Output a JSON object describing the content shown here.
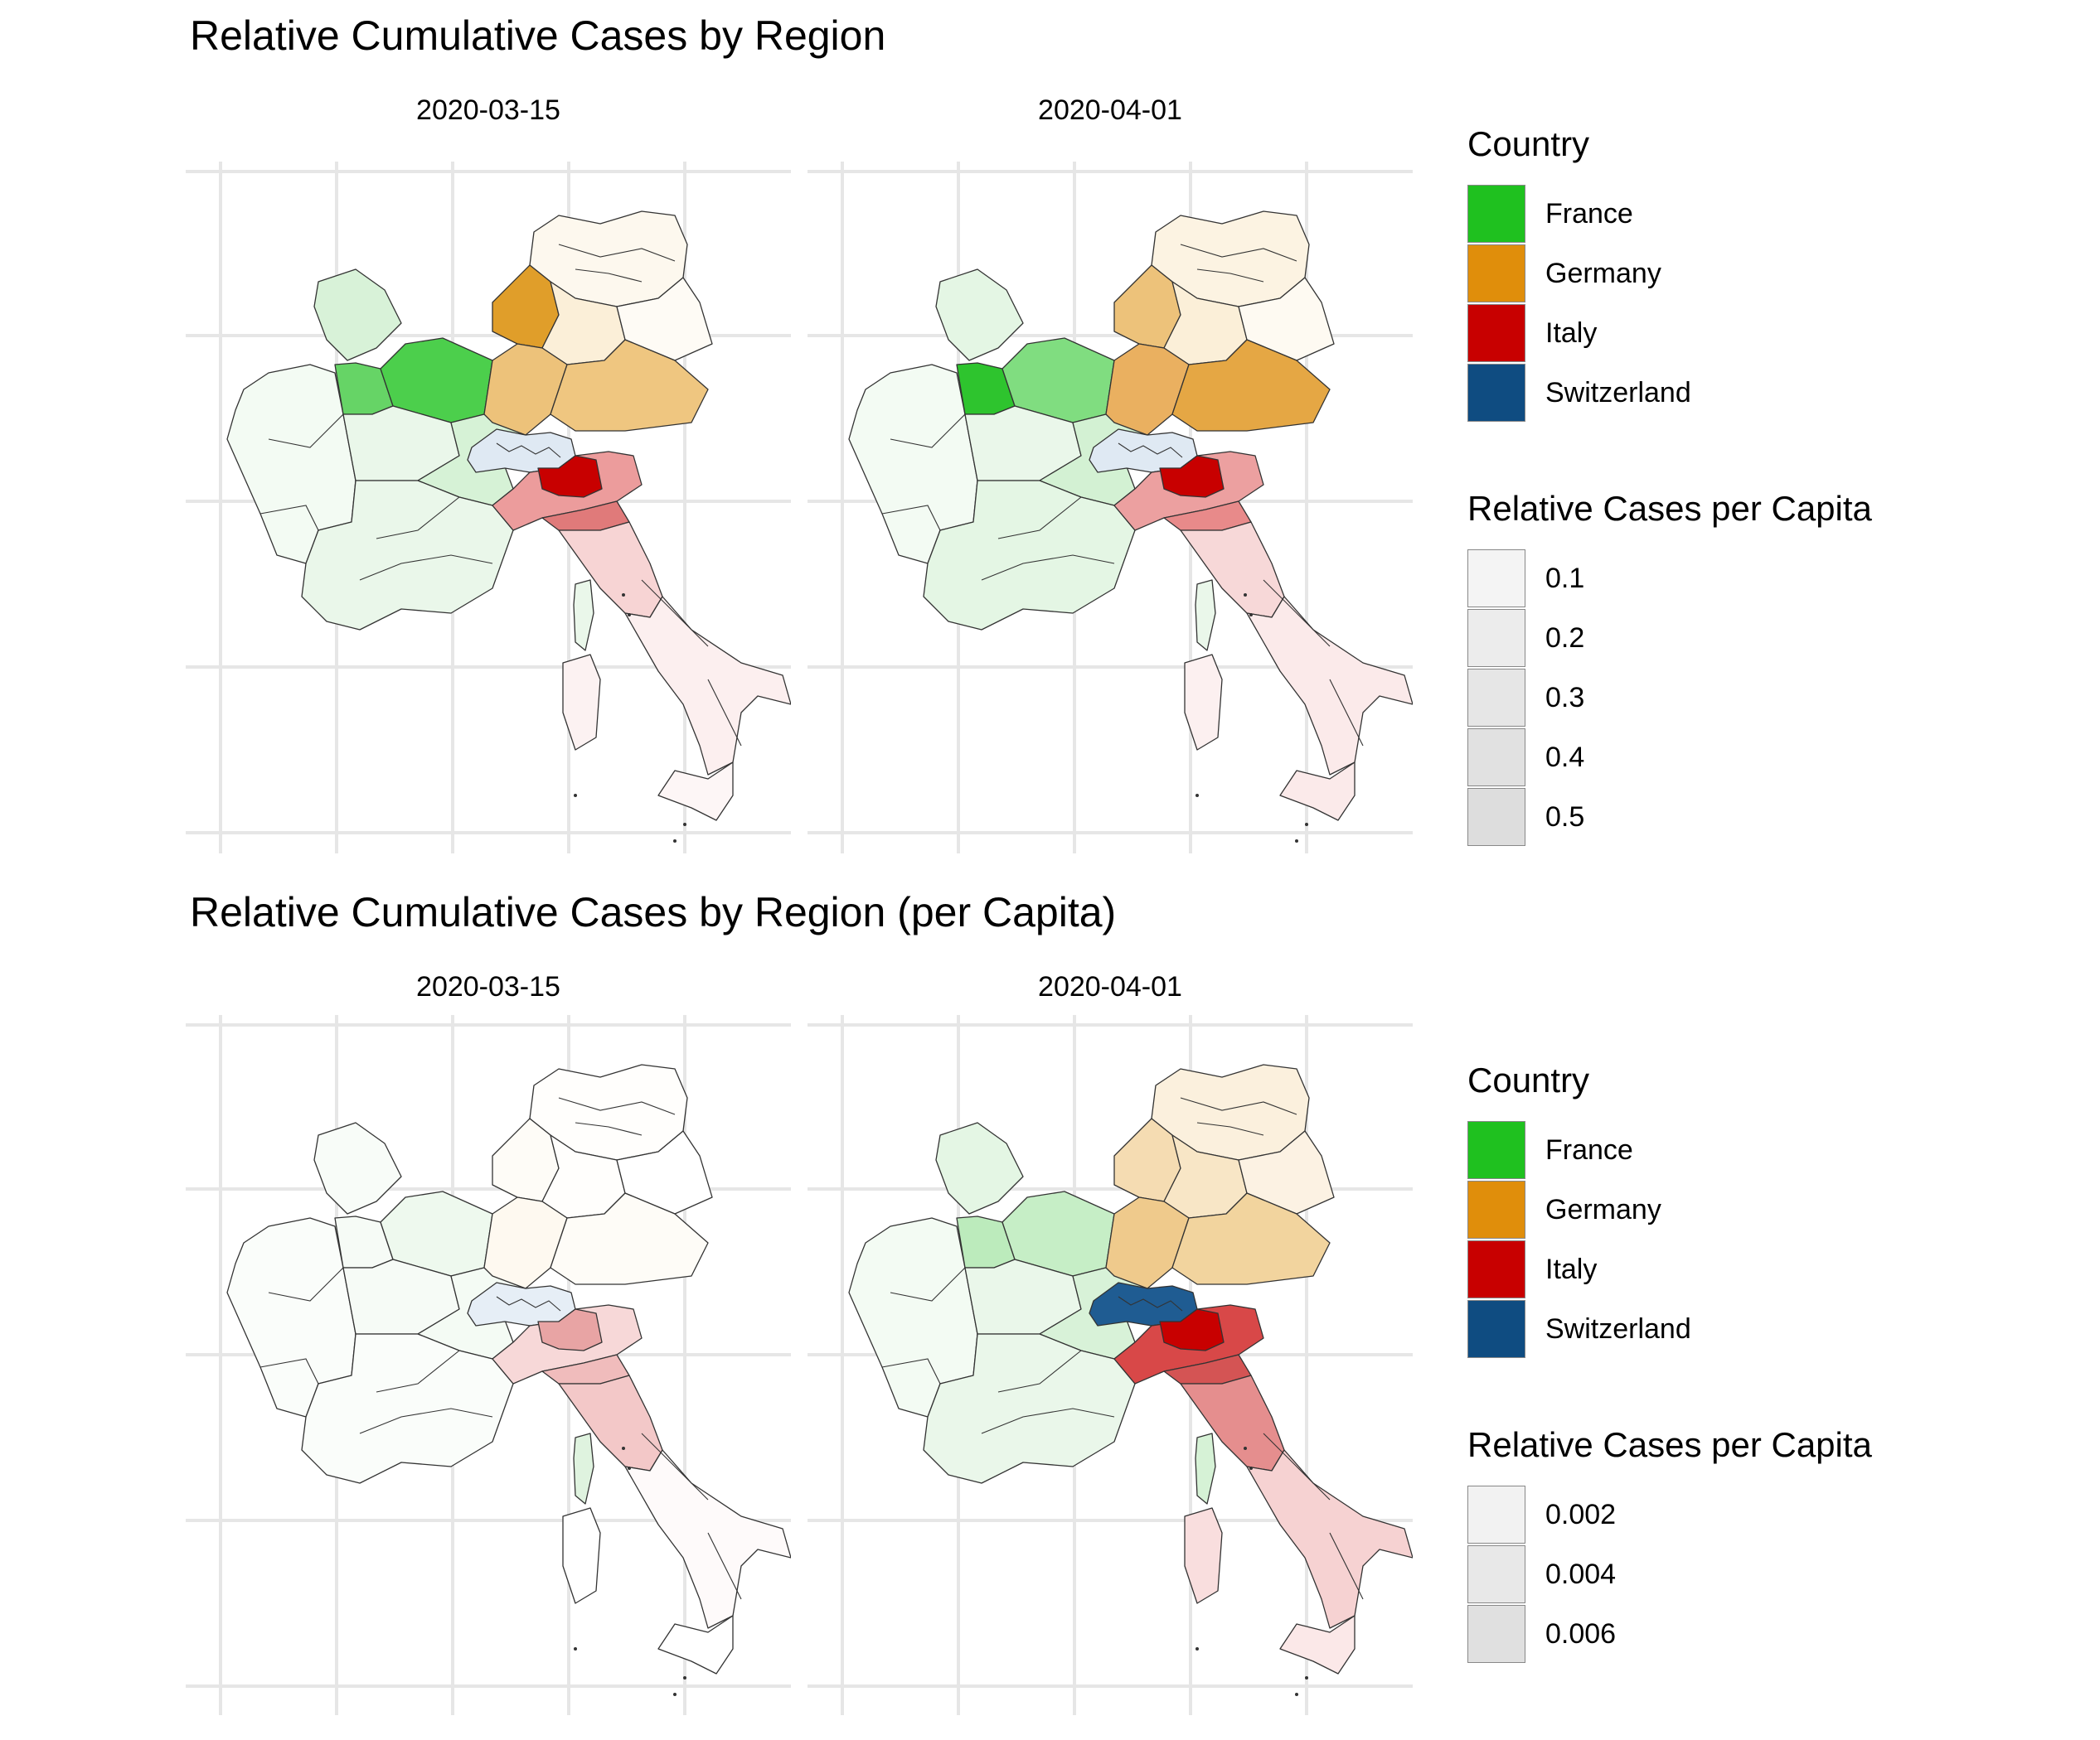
{
  "sections": [
    {
      "title": "Relative Cumulative Cases by Region",
      "facets": [
        {
          "label": "2020-03-15",
          "shading": {
            "fr_west": "#f3fbf3",
            "fr_center": "#eaf7ea",
            "fr_north": "#d8f2d8",
            "fr_grandest": "#4ccf4c",
            "fr_idf": "#66d466",
            "fr_east": "#d6f2d6",
            "fr_south": "#eaf7ea",
            "fr_corsica": "#eaf7ea",
            "de_north": "#fdf8ee",
            "de_nrw": "#e09e2a",
            "de_middle": "#fbefd8",
            "de_bw": "#edc27a",
            "de_by": "#efc680",
            "de_east": "#fefbf5",
            "ch": "#dfe9f3",
            "it_north": "#ec9c9c",
            "it_lombardy": "#c80000",
            "it_emilia": "#e07a7a",
            "it_center": "#f7d4d4",
            "it_south": "#fcefef",
            "it_sicily": "#fdf6f6",
            "it_sardinia": "#fcf2f2"
          }
        },
        {
          "label": "2020-04-01",
          "shading": {
            "fr_west": "#f3fbf3",
            "fr_center": "#eaf7ea",
            "fr_north": "#e4f6e4",
            "fr_grandest": "#80dd80",
            "fr_idf": "#2ec42e",
            "fr_east": "#d3f1d3",
            "fr_south": "#e4f6e4",
            "fr_corsica": "#eaf7ea",
            "de_north": "#fcf3e2",
            "de_nrw": "#edc27a",
            "de_middle": "#fbefd8",
            "de_bw": "#eab060",
            "de_by": "#e5a744",
            "de_east": "#fefaf2",
            "ch": "#dfe9f3",
            "it_north": "#eca0a0",
            "it_lombardy": "#c80000",
            "it_emilia": "#e88a8a",
            "it_center": "#f7d8d8",
            "it_south": "#fbeaea",
            "it_sicily": "#fbeaea",
            "it_sardinia": "#fcf0f0"
          }
        }
      ],
      "legend": {
        "country_title": "Country",
        "countries": [
          {
            "name": "France",
            "color": "#1fc11f"
          },
          {
            "name": "Germany",
            "color": "#e08e0b"
          },
          {
            "name": "Italy",
            "color": "#c80000"
          },
          {
            "name": "Switzerland",
            "color": "#0f4c81"
          }
        ],
        "alpha_title": "Relative Cases per Capita",
        "alpha_keys": [
          {
            "label": "0.1",
            "color": "#f4f4f4"
          },
          {
            "label": "0.2",
            "color": "#ececec"
          },
          {
            "label": "0.3",
            "color": "#e6e6e6"
          },
          {
            "label": "0.4",
            "color": "#e1e1e1"
          },
          {
            "label": "0.5",
            "color": "#dddddd"
          }
        ]
      }
    },
    {
      "title": "Relative Cumulative Cases by Region (per Capita)",
      "facets": [
        {
          "label": "2020-03-15",
          "shading": {
            "fr_west": "#fafdfa",
            "fr_center": "#f6fbf6",
            "fr_north": "#f8fcf8",
            "fr_grandest": "#eef9ee",
            "fr_idf": "#f6fbf6",
            "fr_east": "#f4fbf4",
            "fr_south": "#fafdfa",
            "fr_corsica": "#dff3df",
            "de_north": "#fffefc",
            "de_nrw": "#fefcf7",
            "de_middle": "#fffefc",
            "de_bw": "#fef9f0",
            "de_by": "#fefcf7",
            "de_east": "#ffffff",
            "ch": "#e6eef6",
            "it_north": "#f7d8d8",
            "it_lombardy": "#e8a4a4",
            "it_emilia": "#f0bcbc",
            "it_center": "#f3c8c8",
            "it_south": "#fefafa",
            "it_sicily": "#ffffff",
            "it_sardinia": "#ffffff"
          }
        },
        {
          "label": "2020-04-01",
          "shading": {
            "fr_west": "#f3fbf3",
            "fr_center": "#eaf7ea",
            "fr_north": "#e4f6e4",
            "fr_grandest": "#c6eec6",
            "fr_idf": "#bcebbc",
            "fr_east": "#d8f2d8",
            "fr_south": "#eaf7ea",
            "fr_corsica": "#d6f2d6",
            "de_north": "#fbf0dd",
            "de_nrw": "#f5dcb2",
            "de_middle": "#f8e6c6",
            "de_bw": "#efca8c",
            "de_by": "#f2d49e",
            "de_east": "#fcf2e3",
            "ch": "#1f5c92",
            "it_north": "#d84848",
            "it_lombardy": "#c80000",
            "it_emilia": "#d45454",
            "it_center": "#e58e8e",
            "it_south": "#f6d2d2",
            "it_sicily": "#fbe8e8",
            "it_sardinia": "#f9dede"
          }
        }
      ],
      "legend": {
        "country_title": "Country",
        "countries": [
          {
            "name": "France",
            "color": "#1fc11f"
          },
          {
            "name": "Germany",
            "color": "#e08e0b"
          },
          {
            "name": "Italy",
            "color": "#c80000"
          },
          {
            "name": "Switzerland",
            "color": "#0f4c81"
          }
        ],
        "alpha_title": "Relative Cases per Capita",
        "alpha_keys": [
          {
            "label": "0.002",
            "color": "#f2f2f2"
          },
          {
            "label": "0.004",
            "color": "#e8e8e8"
          },
          {
            "label": "0.006",
            "color": "#e0e0e0"
          }
        ]
      }
    }
  ]
}
